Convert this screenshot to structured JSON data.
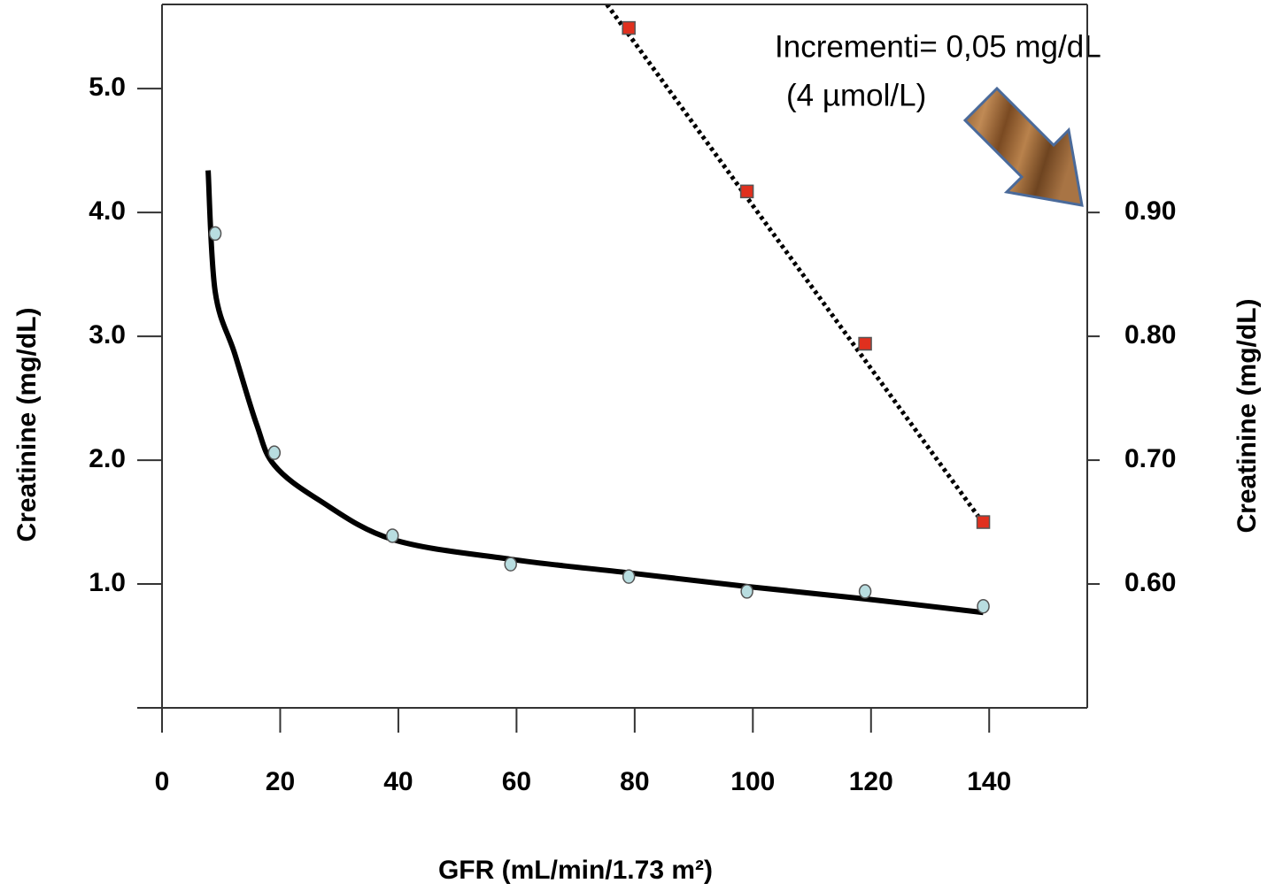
{
  "chart_data": {
    "type": "scatter",
    "xlabel": "GFR (mL/min/1.73 m²)",
    "ylabel": "Creatinine (mg/dL)",
    "y2label": "Creatinine (mg/dL)",
    "annotation": {
      "lines": [
        "Incrementi= 0,05 mg/dL",
        "(4 µmol/L)"
      ]
    },
    "xlim": [
      0,
      156.6
    ],
    "xticks": [
      0,
      20,
      40,
      60,
      80,
      100,
      120,
      140
    ],
    "ylim": [
      0,
      5.68
    ],
    "yticks": [
      {
        "value": 1,
        "label": "1.0"
      },
      {
        "value": 2,
        "label": "2.0"
      },
      {
        "value": 3,
        "label": "3.0"
      },
      {
        "value": 4,
        "label": "4.0"
      },
      {
        "value": 5,
        "label": "5.0"
      }
    ],
    "y2lim": [
      0.5,
      1.068
    ],
    "y2ticks": [
      {
        "value": 0.6,
        "label": "0.60"
      },
      {
        "value": 0.7,
        "label": "0.70"
      },
      {
        "value": 0.8,
        "label": "0.80"
      },
      {
        "value": 0.9,
        "label": "0.90"
      }
    ],
    "series": [
      {
        "type": "line",
        "style": "solid",
        "color": "#000000",
        "x": [
          7.8,
          9,
          12.3,
          16,
          19,
          26.5,
          39,
          59,
          79,
          99,
          119,
          139
        ],
        "values": [
          4.34,
          3.36,
          2.86,
          2.29,
          1.96,
          1.68,
          1.36,
          1.2,
          1.09,
          0.98,
          0.88,
          0.77
        ]
      },
      {
        "type": "scatter",
        "marker": "circle",
        "color": "#b8dde0",
        "x": [
          9,
          19,
          39,
          59,
          79,
          99,
          119,
          139
        ],
        "values": [
          3.83,
          2.06,
          1.39,
          1.16,
          1.06,
          0.94,
          0.94,
          0.82
        ]
      },
      {
        "type": "line",
        "style": "dotted",
        "color": "#000000",
        "axis": "y2",
        "x": [
          75.3,
          139
        ],
        "values": [
          1.068,
          0.649
        ]
      },
      {
        "type": "scatter",
        "marker": "square",
        "color": "#e0301e",
        "axis": "y2",
        "x": [
          79,
          99,
          119,
          139
        ],
        "values": [
          1.049,
          0.917,
          0.794,
          0.65
        ]
      }
    ]
  }
}
